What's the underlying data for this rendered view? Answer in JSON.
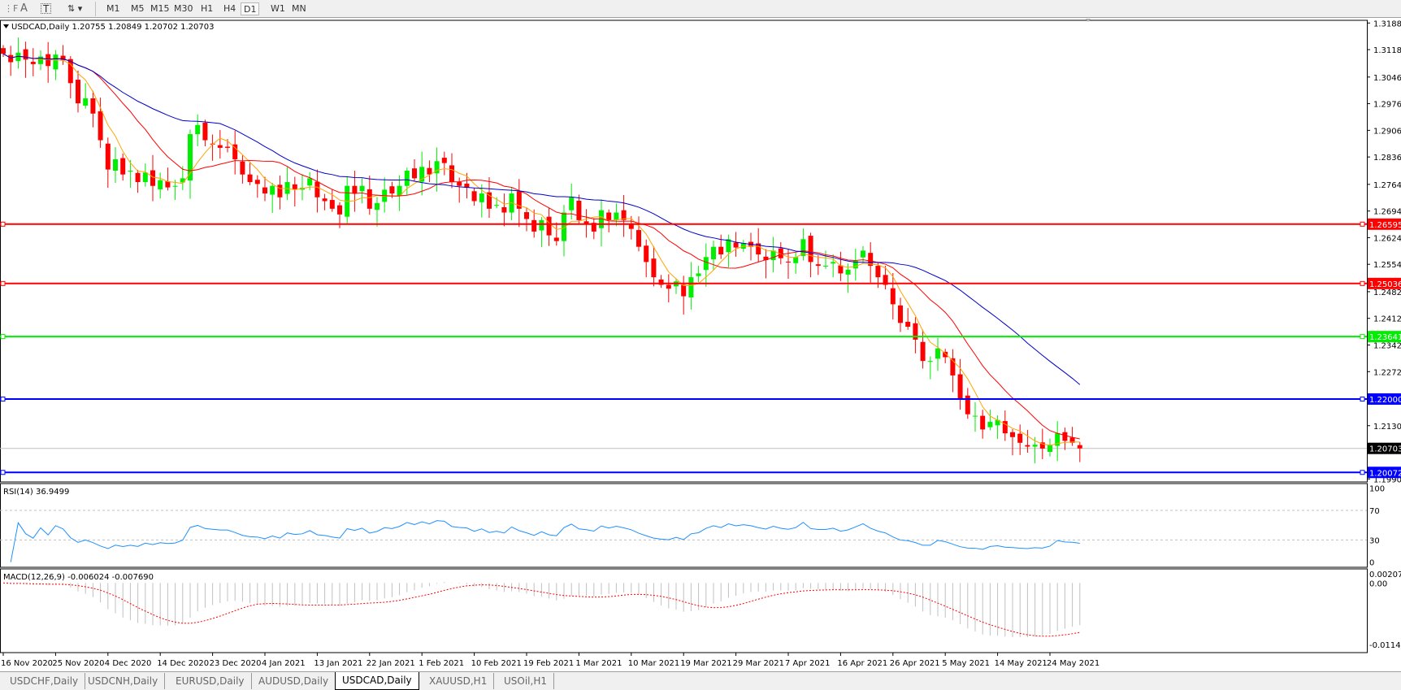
{
  "toolbar": {
    "icons": [
      "fibo-icon",
      "text-icon",
      "text-label-icon",
      "arrows-icon"
    ],
    "timeframes": [
      "M1",
      "M5",
      "M15",
      "M30",
      "H1",
      "H4",
      "D1",
      "W1",
      "MN"
    ],
    "selected": "D1"
  },
  "chart": {
    "header": "USDCAD,Daily  1.20755 1.20849 1.20702 1.20703",
    "price_ticks": [
      "1.31880",
      "1.31180",
      "1.30460",
      "1.29760",
      "1.29060",
      "1.28360",
      "1.27640",
      "1.26940",
      "1.26240",
      "1.25540",
      "1.24820",
      "1.24120",
      "1.23420",
      "1.22720",
      "1.21300",
      "1.19900"
    ],
    "hlines": [
      {
        "price": "1.26595",
        "color": "#ff0000"
      },
      {
        "price": "1.25036",
        "color": "#ff0000"
      },
      {
        "price": "1.23641",
        "color": "#00ee00"
      },
      {
        "price": "1.22000",
        "color": "#0000ff"
      },
      {
        "price": "1.20072",
        "color": "#0000ff"
      }
    ],
    "current_price": "1.20703",
    "bull_color": "#00ee00",
    "bear_color": "#ff0000",
    "ma_colors": [
      "#ffa500",
      "#ff0000",
      "#0000cc"
    ],
    "closes": [
      1.3107,
      1.3085,
      1.311,
      1.3092,
      1.308,
      1.31,
      1.3075,
      1.3105,
      1.309,
      1.303,
      1.2977,
      1.299,
      1.295,
      1.288,
      1.2803,
      1.283,
      1.279,
      1.28,
      1.277,
      1.2795,
      1.276,
      1.2775,
      1.2756,
      1.276,
      1.278,
      1.2896,
      1.292,
      1.288,
      1.287,
      1.286,
      1.286,
      1.283,
      1.279,
      1.277,
      1.2765,
      1.274,
      1.276,
      1.273,
      1.277,
      1.275,
      1.2755,
      1.278,
      1.273,
      1.272,
      1.27,
      1.2685,
      1.276,
      1.274,
      1.276,
      1.27,
      1.2715,
      1.275,
      1.274,
      1.276,
      1.28,
      1.278,
      1.281,
      1.279,
      1.2825,
      1.282,
      1.277,
      1.276,
      1.2755,
      1.272,
      1.274,
      1.27,
      1.271,
      1.269,
      1.274,
      1.27,
      1.2673,
      1.264,
      1.267,
      1.263,
      1.2615,
      1.269,
      1.273,
      1.267,
      1.266,
      1.264,
      1.2696,
      1.267,
      1.269,
      1.267,
      1.2647,
      1.26,
      1.256,
      1.252,
      1.25,
      1.249,
      1.2509,
      1.247,
      1.252,
      1.253,
      1.2573,
      1.26,
      1.258,
      1.262,
      1.2598,
      1.261,
      1.26,
      1.258,
      1.2565,
      1.259,
      1.257,
      1.256,
      1.2573,
      1.262,
      1.256,
      1.255,
      1.255,
      1.256,
      1.253,
      1.254,
      1.2563,
      1.259,
      1.255,
      1.252,
      1.25,
      1.2449,
      1.24,
      1.239,
      1.2356,
      1.23,
      1.23,
      1.2333,
      1.231,
      1.2262,
      1.22,
      1.216,
      1.2156,
      1.212,
      1.214,
      1.2145,
      1.211,
      1.21,
      1.2085,
      1.2075,
      1.208,
      1.207,
      1.208,
      1.211,
      1.209,
      1.2085,
      1.20703
    ],
    "dates": [
      "16 Nov 2020",
      "25 Nov 2020",
      "4 Dec 2020",
      "14 Dec 2020",
      "23 Dec 2020",
      "4 Jan 2021",
      "13 Jan 2021",
      "22 Jan 2021",
      "1 Feb 2021",
      "10 Feb 2021",
      "19 Feb 2021",
      "1 Mar 2021",
      "10 Mar 2021",
      "19 Mar 2021",
      "29 Mar 2021",
      "7 Apr 2021",
      "16 Apr 2021",
      "26 Apr 2021",
      "5 May 2021",
      "14 May 2021",
      "24 May 2021"
    ]
  },
  "rsi": {
    "label": "RSI(14) 36.9499",
    "ticks": [
      "100",
      "70",
      "30",
      "0"
    ],
    "color": "#1e90ff"
  },
  "macd": {
    "label": "MACD(12,26,9) -0.006024 -0.007690",
    "ticks": [
      "0.002074",
      "0.00",
      "-0.011462"
    ],
    "hist_color": "#c0c0c0",
    "signal_color": "#ff0000"
  },
  "tabs": [
    {
      "label": "USDCHF,Daily"
    },
    {
      "label": "USDCNH,Daily"
    },
    {
      "label": "EURUSD,Daily"
    },
    {
      "label": "AUDUSD,Daily"
    },
    {
      "label": "USDCAD,Daily",
      "active": true
    },
    {
      "label": "XAUUSD,H1"
    },
    {
      "label": "USOil,H1"
    }
  ]
}
